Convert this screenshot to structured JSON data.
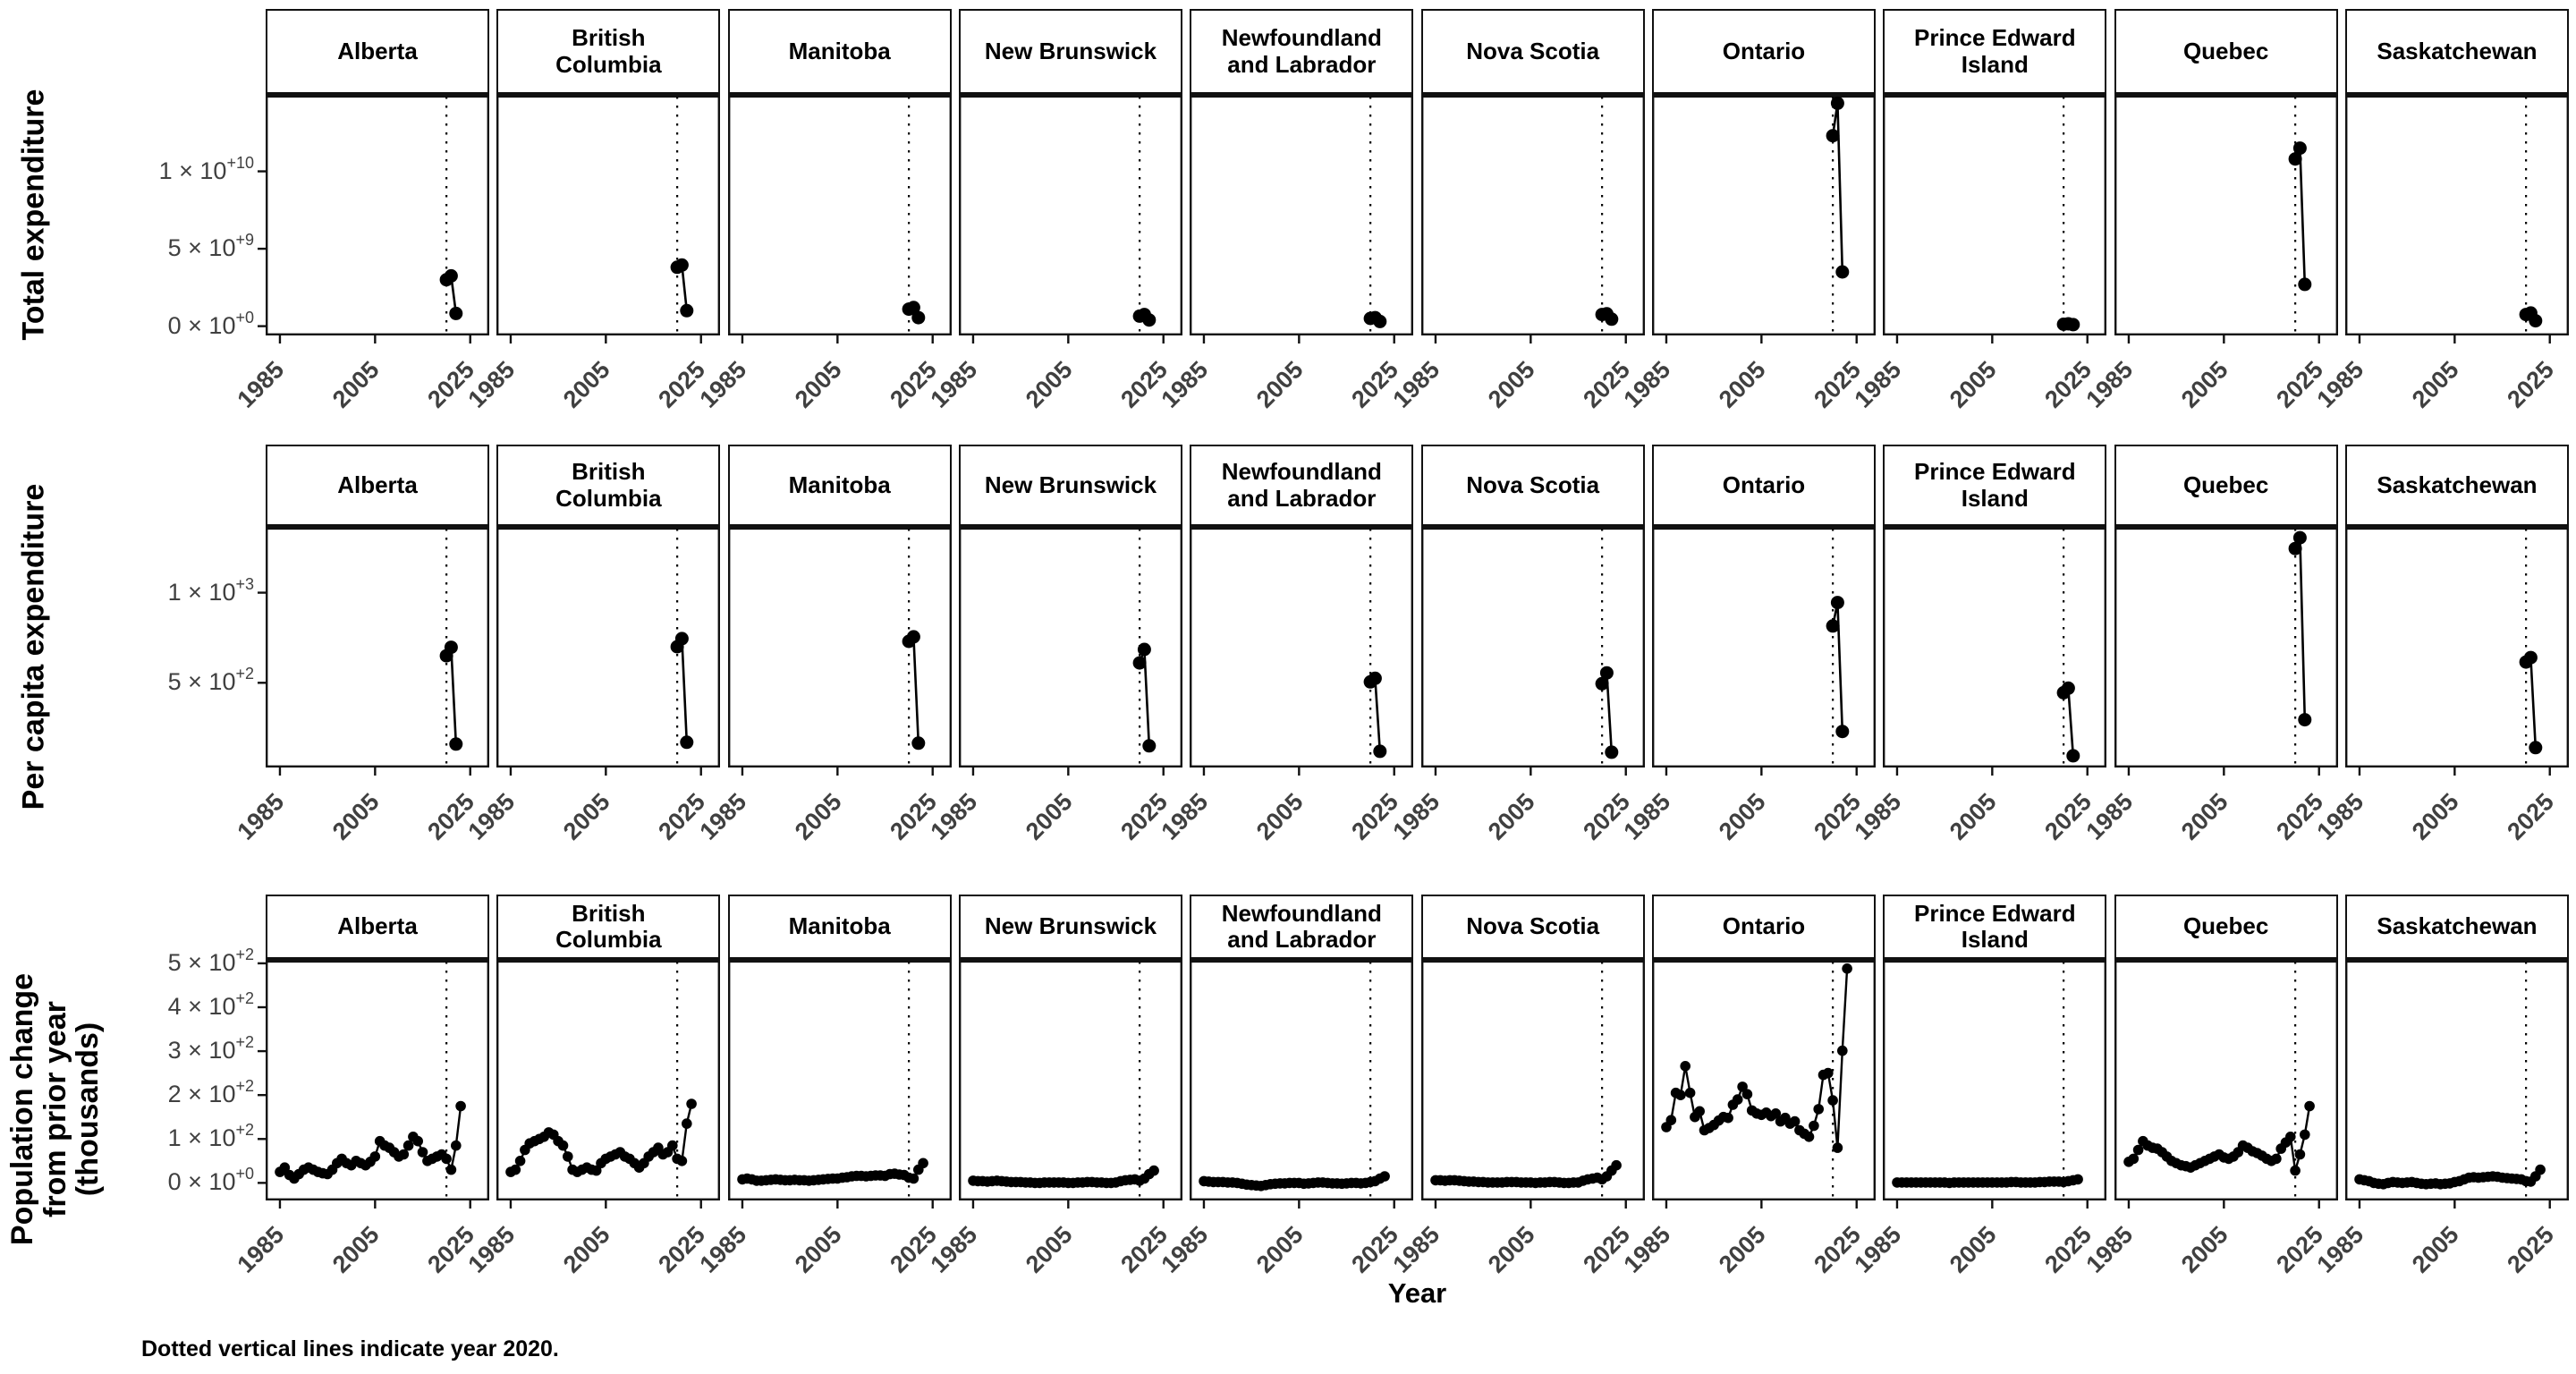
{
  "figure": {
    "x_axis_title": "Year",
    "caption": "Dotted vertical lines indicate year 2020."
  },
  "colors": {
    "points": "#000000",
    "line": "#000000",
    "axis_text": "#404040",
    "panel_border": "#111111",
    "strip_border": "#111111",
    "background": "#ffffff",
    "title_text": "#000000"
  },
  "chart_data": {
    "type": "line",
    "layout": "facet grid: 3 metric rows × 10 province columns; shared x axis; no gridlines; black points connected by black lines; dotted vertical reference line at 2020 in every panel; y tick labels in scientific notation; x tick labels rotated 45°",
    "legend": "none",
    "grid": "off",
    "xlabel": "Year",
    "xlim": [
      1982,
      2029
    ],
    "x_ticks": [
      1985,
      2005,
      2025
    ],
    "vline_x": 2020,
    "vline_note": "Dotted vertical lines indicate year 2020.",
    "provinces": [
      "Alberta",
      "British Columbia",
      "Manitoba",
      "New Brunswick",
      "Newfoundland and Labrador",
      "Nova Scotia",
      "Ontario",
      "Prince Edward Island",
      "Quebec",
      "Saskatchewan"
    ],
    "strip_labels": [
      [
        "Alberta"
      ],
      [
        "British",
        "Columbia"
      ],
      [
        "Manitoba"
      ],
      [
        "New Brunswick"
      ],
      [
        "Newfoundland",
        "and Labrador"
      ],
      [
        "Nova Scotia"
      ],
      [
        "Ontario"
      ],
      [
        "Prince Edward",
        "Island"
      ],
      [
        "Quebec"
      ],
      [
        "Saskatchewan"
      ]
    ],
    "rows": [
      {
        "label": "Total expenditure",
        "label_lines": [
          "Total expenditure"
        ],
        "ylim": [
          -600000000,
          15000000000
        ],
        "y_ticks": [
          {
            "v": 0,
            "m": "0 × 10",
            "e": "+0"
          },
          {
            "v": 5000000000,
            "m": "5 × 10",
            "e": "+9"
          },
          {
            "v": 10000000000,
            "m": "1 × 10",
            "e": "+10"
          }
        ],
        "x": [
          2020,
          2021,
          2022
        ],
        "series": {
          "Alberta": [
            3000000000,
            3250000000,
            820000000
          ],
          "British Columbia": [
            3800000000,
            3950000000,
            1000000000
          ],
          "Manitoba": [
            1100000000,
            1200000000,
            550000000
          ],
          "New Brunswick": [
            650000000,
            750000000,
            400000000
          ],
          "Newfoundland and Labrador": [
            500000000,
            550000000,
            300000000
          ],
          "Nova Scotia": [
            750000000,
            800000000,
            450000000
          ],
          "Ontario": [
            12300000000,
            14400000000,
            3500000000
          ],
          "Prince Edward Island": [
            120000000,
            150000000,
            100000000
          ],
          "Quebec": [
            10800000000,
            11500000000,
            2700000000
          ],
          "Saskatchewan": [
            750000000,
            850000000,
            350000000
          ]
        }
      },
      {
        "label": "Per capita expenditure",
        "label_lines": [
          "Per capita expenditure"
        ],
        "ylim": [
          30,
          1370
        ],
        "y_ticks": [
          {
            "v": 500,
            "m": "5 × 10",
            "e": "+2"
          },
          {
            "v": 1000,
            "m": "1 × 10",
            "e": "+3"
          }
        ],
        "x": [
          2020,
          2021,
          2022
        ],
        "series": {
          "Alberta": [
            650,
            697,
            160
          ],
          "British Columbia": [
            700,
            745,
            170
          ],
          "Manitoba": [
            730,
            755,
            165
          ],
          "New Brunswick": [
            610,
            685,
            150
          ],
          "Newfoundland and Labrador": [
            505,
            525,
            120
          ],
          "Nova Scotia": [
            495,
            555,
            115
          ],
          "Ontario": [
            815,
            945,
            230
          ],
          "Prince Edward Island": [
            445,
            470,
            95
          ],
          "Quebec": [
            1245,
            1305,
            295
          ],
          "Saskatchewan": [
            615,
            640,
            140
          ]
        }
      },
      {
        "label": "Population change from prior year (thousands)",
        "label_lines": [
          "Population change",
          "from prior year",
          "(thousands)"
        ],
        "ylim": [
          -40,
          510
        ],
        "y_ticks": [
          {
            "v": 0,
            "m": "0 × 10",
            "e": "+0"
          },
          {
            "v": 100,
            "m": "1 × 10",
            "e": "+2"
          },
          {
            "v": 200,
            "m": "2 × 10",
            "e": "+2"
          },
          {
            "v": 300,
            "m": "3 × 10",
            "e": "+2"
          },
          {
            "v": 400,
            "m": "4 × 10",
            "e": "+2"
          },
          {
            "v": 500,
            "m": "5 × 10",
            "e": "+2"
          }
        ],
        "x": [
          1985,
          1986,
          1987,
          1988,
          1989,
          1990,
          1991,
          1992,
          1993,
          1994,
          1995,
          1996,
          1997,
          1998,
          1999,
          2000,
          2001,
          2002,
          2003,
          2004,
          2005,
          2006,
          2007,
          2008,
          2009,
          2010,
          2011,
          2012,
          2013,
          2014,
          2015,
          2016,
          2017,
          2018,
          2019,
          2020,
          2021,
          2022,
          2023
        ],
        "series": {
          "Alberta": [
            25,
            35,
            18,
            10,
            20,
            30,
            35,
            30,
            25,
            22,
            20,
            30,
            45,
            55,
            45,
            40,
            50,
            45,
            40,
            48,
            60,
            95,
            85,
            80,
            70,
            60,
            65,
            85,
            105,
            95,
            70,
            50,
            55,
            60,
            65,
            55,
            30,
            85,
            175
          ],
          "British Columbia": [
            25,
            30,
            50,
            75,
            90,
            95,
            100,
            105,
            115,
            110,
            95,
            85,
            60,
            30,
            25,
            30,
            35,
            30,
            28,
            45,
            55,
            60,
            65,
            70,
            60,
            55,
            45,
            35,
            45,
            60,
            70,
            80,
            65,
            70,
            85,
            55,
            50,
            135,
            180
          ],
          "Manitoba": [
            8,
            10,
            8,
            5,
            5,
            6,
            7,
            8,
            7,
            6,
            6,
            7,
            6,
            6,
            5,
            6,
            7,
            8,
            9,
            10,
            10,
            12,
            13,
            15,
            16,
            16,
            15,
            16,
            17,
            17,
            16,
            20,
            21,
            19,
            18,
            12,
            10,
            30,
            45
          ],
          "New Brunswick": [
            5,
            4,
            4,
            3,
            4,
            5,
            4,
            3,
            2,
            2,
            2,
            1,
            1,
            0,
            0,
            1,
            1,
            1,
            1,
            1,
            0,
            0,
            1,
            1,
            2,
            2,
            1,
            1,
            0,
            0,
            1,
            4,
            6,
            7,
            8,
            5,
            10,
            20,
            28
          ],
          "Newfoundland and Labrador": [
            4,
            3,
            2,
            2,
            2,
            1,
            1,
            0,
            -2,
            -4,
            -5,
            -6,
            -7,
            -5,
            -3,
            -2,
            -1,
            -1,
            0,
            0,
            0,
            -2,
            -1,
            0,
            1,
            1,
            0,
            -1,
            -1,
            -2,
            -1,
            0,
            0,
            -1,
            0,
            2,
            4,
            10,
            15
          ],
          "Nova Scotia": [
            6,
            6,
            5,
            6,
            6,
            5,
            4,
            3,
            3,
            2,
            2,
            1,
            1,
            1,
            1,
            2,
            2,
            2,
            1,
            1,
            1,
            0,
            1,
            1,
            2,
            2,
            1,
            0,
            0,
            1,
            1,
            5,
            8,
            10,
            12,
            8,
            15,
            28,
            40
          ],
          "Ontario": [
            127,
            143,
            205,
            200,
            266,
            205,
            150,
            163,
            120,
            125,
            132,
            142,
            150,
            148,
            178,
            190,
            219,
            202,
            165,
            158,
            155,
            160,
            152,
            158,
            140,
            148,
            135,
            140,
            120,
            112,
            105,
            130,
            168,
            246,
            250,
            188,
            80,
            301,
            488
          ],
          "Prince Edward Island": [
            1,
            1,
            1,
            1,
            1,
            1,
            1,
            1,
            1,
            1,
            1,
            0,
            1,
            1,
            1,
            1,
            1,
            1,
            1,
            1,
            1,
            1,
            1,
            1,
            2,
            2,
            1,
            1,
            1,
            1,
            2,
            2,
            3,
            3,
            3,
            2,
            4,
            6,
            8
          ],
          "Quebec": [
            48,
            55,
            75,
            95,
            85,
            80,
            78,
            70,
            60,
            50,
            45,
            40,
            38,
            35,
            40,
            45,
            50,
            55,
            60,
            65,
            58,
            55,
            60,
            70,
            85,
            80,
            72,
            68,
            62,
            55,
            50,
            55,
            78,
            92,
            105,
            28,
            65,
            110,
            175
          ],
          "Saskatchewan": [
            8,
            6,
            4,
            0,
            -2,
            -3,
            0,
            2,
            1,
            0,
            1,
            2,
            0,
            -2,
            -3,
            -2,
            -1,
            -3,
            -2,
            -1,
            2,
            4,
            8,
            12,
            13,
            12,
            13,
            14,
            15,
            14,
            12,
            11,
            10,
            9,
            8,
            4,
            3,
            15,
            30
          ]
        }
      }
    ]
  }
}
